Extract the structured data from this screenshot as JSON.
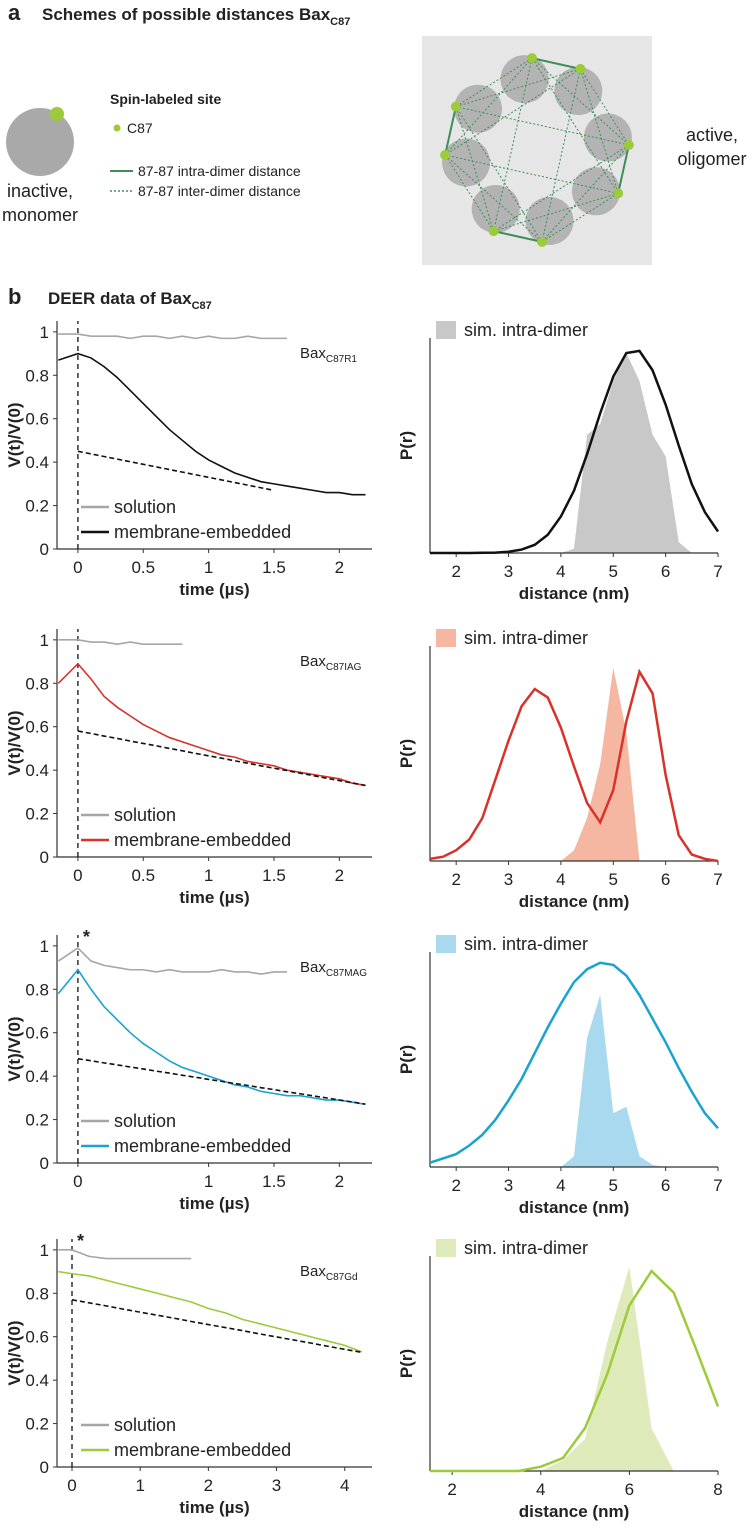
{
  "panel_a": {
    "label": "a",
    "title": "Schemes of possible distances Bax",
    "title_sub": "C87",
    "legend_title": "Spin-labeled site",
    "legend": [
      "C87",
      "87-87 intra-dimer distance",
      "87-87 inter-dimer distance"
    ],
    "monomer_label": [
      "inactive,",
      "monomer"
    ],
    "oligomer_label": [
      "active,",
      "oligomer"
    ]
  },
  "panel_b": {
    "label": "b",
    "title": "DEER data of Bax",
    "title_sub": "C87"
  },
  "chart_data": [
    {
      "type": "line",
      "annotation": "Bax",
      "annotation_sub": "C87R1",
      "xlabel": "time (µs)",
      "ylabel": "V(t)/V(0)",
      "vline": 0,
      "legend": "lower left",
      "x": [
        -0.15,
        0,
        0.1,
        0.2,
        0.3,
        0.4,
        0.5,
        0.6,
        0.7,
        0.8,
        0.9,
        1,
        1.1,
        1.2,
        1.3,
        1.4,
        1.5,
        1.6,
        1.7,
        1.8,
        1.9,
        2,
        2.1,
        2.2
      ],
      "series": [
        {
          "name": "solution",
          "color": "#a6a6a6",
          "values": [
            0.99,
            0.99,
            0.98,
            0.98,
            0.98,
            0.97,
            0.98,
            0.98,
            0.97,
            0.98,
            0.97,
            0.98,
            0.97,
            0.97,
            0.98,
            0.97,
            0.97,
            0.97,
            null,
            null,
            null,
            null,
            null,
            null
          ]
        },
        {
          "name": "membrane-embedded",
          "color": "#111111",
          "values": [
            0.87,
            0.9,
            0.88,
            0.84,
            0.79,
            0.73,
            0.67,
            0.61,
            0.55,
            0.5,
            0.45,
            0.41,
            0.38,
            0.35,
            0.33,
            0.31,
            0.3,
            0.29,
            0.28,
            0.27,
            0.26,
            0.26,
            0.25,
            0.25
          ]
        },
        {
          "color": "#111111",
          "dash": true,
          "values": [
            null,
            0.45,
            0.438,
            0.426,
            0.414,
            0.402,
            0.39,
            0.378,
            0.366,
            0.354,
            0.342,
            0.33,
            0.318,
            0.306,
            0.294,
            0.282,
            0.27,
            null,
            null,
            null,
            null,
            null,
            null,
            null
          ]
        }
      ],
      "xlim": [
        -0.16,
        2.25
      ],
      "xticks": [
        0,
        0.5,
        1,
        1.5,
        2
      ],
      "ylim": [
        0,
        1.05
      ],
      "yticks": [
        0,
        0.2,
        0.4,
        0.6,
        0.8,
        1
      ]
    },
    {
      "type": "density",
      "xlabel": "distance (nm)",
      "ylabel": "P(r)",
      "legend": "upper left",
      "x": [
        1.5,
        1.75,
        2,
        2.25,
        2.5,
        2.75,
        3,
        3.25,
        3.5,
        3.75,
        4,
        4.25,
        4.5,
        4.75,
        5,
        5.25,
        5.5,
        5.75,
        6,
        6.25,
        6.5,
        6.75,
        7
      ],
      "series": [
        {
          "name": "sim. intra-dimer",
          "color": "#c8c8c8",
          "fill": true,
          "values": [
            0,
            0,
            0,
            0,
            0,
            0,
            0,
            0,
            0,
            0,
            0,
            0.02,
            0.55,
            0.6,
            0.8,
            0.93,
            0.8,
            0.55,
            0.45,
            0.05,
            0,
            0,
            0
          ]
        },
        {
          "color": "#111111",
          "values": [
            0,
            0,
            0,
            0,
            0.001,
            0.002,
            0.006,
            0.016,
            0.038,
            0.085,
            0.17,
            0.29,
            0.46,
            0.65,
            0.82,
            0.93,
            0.94,
            0.85,
            0.69,
            0.5,
            0.32,
            0.19,
            0.1
          ]
        }
      ],
      "xlim": [
        1.5,
        7
      ],
      "xticks": [
        2,
        3,
        4,
        5,
        6,
        7
      ],
      "ylim": [
        0,
        1
      ]
    },
    {
      "type": "line",
      "annotation": "Bax",
      "annotation_sub": "C87IAG",
      "xlabel": "time (µs)",
      "ylabel": "V(t)/V(0)",
      "vline": 0,
      "legend": "lower left",
      "x": [
        -0.15,
        0,
        0.1,
        0.2,
        0.3,
        0.4,
        0.5,
        0.6,
        0.7,
        0.8,
        0.9,
        1,
        1.1,
        1.2,
        1.3,
        1.4,
        1.5,
        1.6,
        1.7,
        1.8,
        1.9,
        2,
        2.1,
        2.2
      ],
      "series": [
        {
          "name": "solution",
          "color": "#a6a6a6",
          "values": [
            1,
            1,
            0.99,
            0.99,
            0.98,
            0.99,
            0.98,
            0.98,
            0.98,
            0.98,
            null,
            null,
            null,
            null,
            null,
            null,
            null,
            null,
            null,
            null,
            null,
            null,
            null,
            null
          ]
        },
        {
          "name": "membrane-embedded",
          "color": "#d8322a",
          "values": [
            0.8,
            0.89,
            0.82,
            0.74,
            0.69,
            0.65,
            0.61,
            0.58,
            0.55,
            0.53,
            0.51,
            0.49,
            0.47,
            0.46,
            0.44,
            0.43,
            0.42,
            0.4,
            0.39,
            0.38,
            0.37,
            0.36,
            0.34,
            0.33
          ]
        },
        {
          "color": "#111111",
          "dash": true,
          "values": [
            null,
            0.58,
            0.569,
            0.557,
            0.546,
            0.534,
            0.523,
            0.512,
            0.5,
            0.489,
            0.477,
            0.466,
            0.455,
            0.443,
            0.432,
            0.42,
            0.409,
            0.398,
            0.386,
            0.375,
            0.363,
            0.352,
            0.341,
            0.329
          ]
        }
      ],
      "xlim": [
        -0.16,
        2.25
      ],
      "xticks": [
        0,
        0.5,
        1,
        1.5,
        2
      ],
      "ylim": [
        0,
        1.05
      ],
      "yticks": [
        0,
        0.2,
        0.4,
        0.6,
        0.8,
        1
      ]
    },
    {
      "type": "density",
      "xlabel": "distance (nm)",
      "ylabel": "P(r)",
      "legend": "upper left",
      "x": [
        1.5,
        1.75,
        2,
        2.25,
        2.5,
        2.75,
        3,
        3.25,
        3.5,
        3.75,
        4,
        4.25,
        4.5,
        4.75,
        5,
        5.25,
        5.5,
        5.75,
        6,
        6.25,
        6.5,
        6.75,
        7
      ],
      "series": [
        {
          "name": "sim. intra-dimer",
          "color": "#f6b7a2",
          "fill": true,
          "values": [
            0,
            0,
            0,
            0,
            0,
            0,
            0,
            0,
            0,
            0,
            0,
            0.05,
            0.2,
            0.45,
            0.9,
            0.6,
            0,
            0,
            0,
            0,
            0,
            0,
            0
          ]
        },
        {
          "color": "#d8322a",
          "values": [
            0.01,
            0.02,
            0.05,
            0.1,
            0.2,
            0.38,
            0.56,
            0.72,
            0.8,
            0.76,
            0.62,
            0.44,
            0.27,
            0.18,
            0.33,
            0.65,
            0.88,
            0.78,
            0.4,
            0.12,
            0.03,
            0.01,
            0
          ]
        }
      ],
      "xlim": [
        1.5,
        7
      ],
      "xticks": [
        2,
        3,
        4,
        5,
        6,
        7
      ],
      "ylim": [
        0,
        1
      ]
    },
    {
      "type": "line",
      "annotation": "Bax",
      "annotation_sub": "C87MAG",
      "asterisk": "*",
      "xlabel": "time (µs)",
      "ylabel": "V(t)/V(0)",
      "vline": 0,
      "legend": "lower left",
      "x": [
        -0.15,
        0,
        0.1,
        0.2,
        0.3,
        0.4,
        0.5,
        0.6,
        0.7,
        0.8,
        0.9,
        1,
        1.1,
        1.2,
        1.3,
        1.4,
        1.5,
        1.6,
        1.7,
        1.8,
        1.9,
        2,
        2.1,
        2.2
      ],
      "series": [
        {
          "name": "solution",
          "color": "#a6a6a6",
          "values": [
            0.93,
            0.99,
            0.93,
            0.91,
            0.9,
            0.89,
            0.89,
            0.88,
            0.89,
            0.88,
            0.88,
            0.88,
            0.89,
            0.88,
            0.88,
            0.87,
            0.88,
            0.88,
            null,
            null,
            null,
            null,
            null,
            null
          ]
        },
        {
          "name": "membrane-embedded",
          "color": "#1aa3d0",
          "values": [
            0.78,
            0.89,
            0.8,
            0.72,
            0.66,
            0.6,
            0.55,
            0.51,
            0.47,
            0.44,
            0.42,
            0.4,
            0.38,
            0.36,
            0.35,
            0.33,
            0.32,
            0.31,
            0.31,
            0.3,
            0.29,
            0.29,
            0.28,
            0.27
          ]
        },
        {
          "color": "#111111",
          "dash": true,
          "values": [
            null,
            0.48,
            0.471,
            0.461,
            0.452,
            0.442,
            0.433,
            0.423,
            0.414,
            0.404,
            0.395,
            0.385,
            0.376,
            0.366,
            0.357,
            0.347,
            0.338,
            0.328,
            0.319,
            0.309,
            0.3,
            0.29,
            0.281,
            0.271
          ]
        }
      ],
      "xlim": [
        -0.16,
        2.25
      ],
      "xticks": [
        0,
        1,
        1.5,
        2
      ],
      "ylim": [
        0,
        1.05
      ],
      "yticks": [
        0,
        0.2,
        0.4,
        0.6,
        0.8,
        1
      ]
    },
    {
      "type": "density",
      "xlabel": "distance (nm)",
      "ylabel": "P(r)",
      "legend": "upper left",
      "x": [
        1.5,
        1.75,
        2,
        2.25,
        2.5,
        2.75,
        3,
        3.25,
        3.5,
        3.75,
        4,
        4.25,
        4.5,
        4.75,
        5,
        5.25,
        5.5,
        5.75,
        6,
        6.25,
        6.5,
        6.75,
        7
      ],
      "series": [
        {
          "name": "sim. intra-dimer",
          "color": "#a9d9ef",
          "fill": true,
          "values": [
            0,
            0,
            0,
            0,
            0,
            0,
            0,
            0,
            0,
            0,
            0,
            0.05,
            0.6,
            0.8,
            0.25,
            0.28,
            0.05,
            0.01,
            0,
            0,
            0,
            0,
            0
          ]
        },
        {
          "color": "#1aa3d0",
          "values": [
            0.02,
            0.04,
            0.06,
            0.1,
            0.15,
            0.22,
            0.31,
            0.41,
            0.53,
            0.65,
            0.76,
            0.86,
            0.92,
            0.95,
            0.94,
            0.89,
            0.8,
            0.69,
            0.58,
            0.46,
            0.35,
            0.25,
            0.18
          ]
        }
      ],
      "xlim": [
        1.5,
        7
      ],
      "xticks": [
        2,
        3,
        4,
        5,
        6,
        7
      ],
      "ylim": [
        0,
        1
      ]
    },
    {
      "type": "line",
      "annotation": "Bax",
      "annotation_sub": "C87Gd",
      "asterisk": "*",
      "xlabel": "time (µs)",
      "ylabel": "V(t)/V(0)",
      "vline": 0,
      "legend": "lower left",
      "x": [
        -0.2,
        0,
        0.25,
        0.5,
        0.75,
        1,
        1.25,
        1.5,
        1.75,
        2,
        2.25,
        2.5,
        2.75,
        3,
        3.25,
        3.5,
        3.75,
        4,
        4.25
      ],
      "series": [
        {
          "name": "solution",
          "color": "#a6a6a6",
          "values": [
            1,
            1,
            0.97,
            0.96,
            0.96,
            0.96,
            0.96,
            0.96,
            0.96,
            null,
            null,
            null,
            null,
            null,
            null,
            null,
            null,
            null,
            null
          ]
        },
        {
          "name": "membrane-embedded",
          "color": "#9ccb3a",
          "values": [
            0.9,
            0.89,
            0.88,
            0.86,
            0.84,
            0.82,
            0.8,
            0.78,
            0.76,
            0.73,
            0.71,
            0.68,
            0.66,
            0.64,
            0.62,
            0.6,
            0.58,
            0.56,
            0.53
          ]
        },
        {
          "color": "#111111",
          "dash": true,
          "values": [
            null,
            0.77,
            0.756,
            0.742,
            0.727,
            0.713,
            0.699,
            0.685,
            0.67,
            0.656,
            0.642,
            0.628,
            0.613,
            0.599,
            0.585,
            0.571,
            0.556,
            0.542,
            0.528
          ]
        }
      ],
      "xlim": [
        -0.22,
        4.4
      ],
      "xticks": [
        0,
        1,
        2,
        3,
        4
      ],
      "ylim": [
        0,
        1.05
      ],
      "yticks": [
        0,
        0.2,
        0.4,
        0.6,
        0.8,
        1
      ]
    },
    {
      "type": "density",
      "xlabel": "distance (nm)",
      "ylabel": "P(r)",
      "legend": "upper left",
      "x": [
        1.5,
        2,
        2.5,
        3,
        3.5,
        4,
        4.5,
        5,
        5.5,
        6,
        6.5,
        7,
        7.5,
        8
      ],
      "series": [
        {
          "name": "sim. intra-dimer",
          "color": "#dfeabb",
          "fill": true,
          "values": [
            0,
            0,
            0,
            0,
            0,
            0,
            0.05,
            0.15,
            0.6,
            0.95,
            0.2,
            0,
            0,
            0
          ]
        },
        {
          "color": "#9ccb3a",
          "values": [
            0,
            0,
            0,
            0,
            0,
            0.02,
            0.06,
            0.2,
            0.45,
            0.77,
            0.93,
            0.83,
            0.57,
            0.3
          ]
        }
      ],
      "xlim": [
        1.5,
        8
      ],
      "xticks": [
        2,
        4,
        6,
        8
      ],
      "ylim": [
        0,
        1
      ]
    }
  ]
}
